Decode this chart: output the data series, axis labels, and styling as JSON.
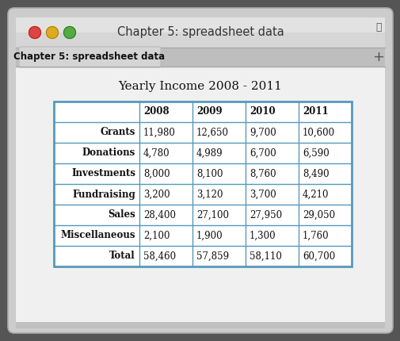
{
  "title_bar": "Chapter 5: spreadsheet data",
  "tab_label": "Chapter 5: spreadsheet data",
  "table_title": "Yearly Income 2008 - 2011",
  "headers": [
    "",
    "2008",
    "2009",
    "2010",
    "2011"
  ],
  "rows": [
    [
      "Grants",
      "11,980",
      "12,650",
      "9,700",
      "10,600"
    ],
    [
      "Donations",
      "4,780",
      "4,989",
      "6,700",
      "6,590"
    ],
    [
      "Investments",
      "8,000",
      "8,100",
      "8,760",
      "8,490"
    ],
    [
      "Fundraising",
      "3,200",
      "3,120",
      "3,700",
      "4,210"
    ],
    [
      "Sales",
      "28,400",
      "27,100",
      "27,950",
      "29,050"
    ],
    [
      "Miscellaneous",
      "2,100",
      "1,900",
      "1,300",
      "1,760"
    ],
    [
      "Total",
      "58,460",
      "57,859",
      "58,110",
      "60,700"
    ]
  ],
  "border_color": "#5599bb",
  "red_btn": "#dd4444",
  "yellow_btn": "#ddaa22",
  "green_btn": "#55aa44",
  "fig_width": 5.06,
  "fig_height": 4.3,
  "dpi": 100
}
